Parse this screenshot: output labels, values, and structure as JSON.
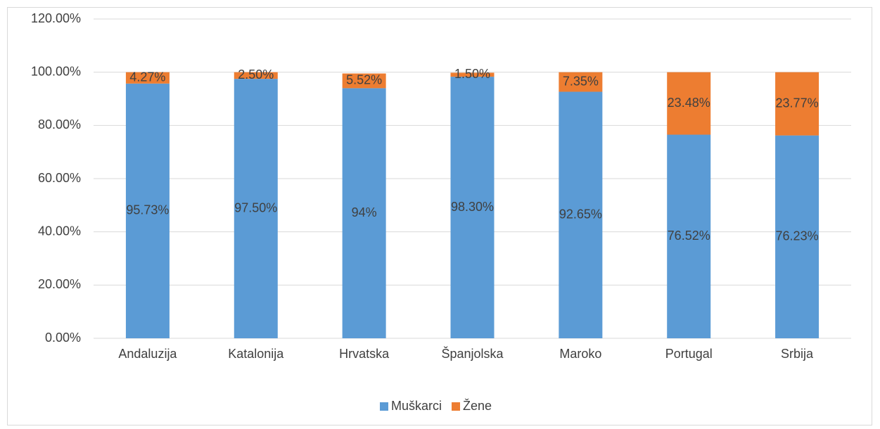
{
  "chart_data": {
    "type": "stacked_bar",
    "categories": [
      "Andaluzija",
      "Katalonija",
      "Hrvatska",
      "Španjolska",
      "Maroko",
      "Portugal",
      "Srbija"
    ],
    "series": [
      {
        "name": "Muškarci",
        "color": "#5b9bd5",
        "values": [
          95.73,
          97.5,
          94,
          98.3,
          92.65,
          76.52,
          76.23
        ],
        "value_labels": [
          "95.73%",
          "97.50%",
          "94%",
          "98.30%",
          "92.65%",
          "76.52%",
          "76.23%"
        ]
      },
      {
        "name": "Žene",
        "color": "#ed7d31",
        "values": [
          4.27,
          2.5,
          5.52,
          1.5,
          7.35,
          23.48,
          23.77
        ],
        "value_labels": [
          "4.27%",
          "2.50%",
          "5.52%",
          "1.50%",
          "7.35%",
          "23.48%",
          "23.77%"
        ]
      }
    ],
    "ylim": [
      0,
      120
    ],
    "yticks": [
      {
        "value": 0,
        "label": "0.00%"
      },
      {
        "value": 20,
        "label": "20.00%"
      },
      {
        "value": 40,
        "label": "40.00%"
      },
      {
        "value": 60,
        "label": "60.00%"
      },
      {
        "value": 80,
        "label": "80.00%"
      },
      {
        "value": 100,
        "label": "100.00%"
      },
      {
        "value": 120,
        "label": "120.00%"
      }
    ],
    "grid": true,
    "legend": "bottom"
  }
}
